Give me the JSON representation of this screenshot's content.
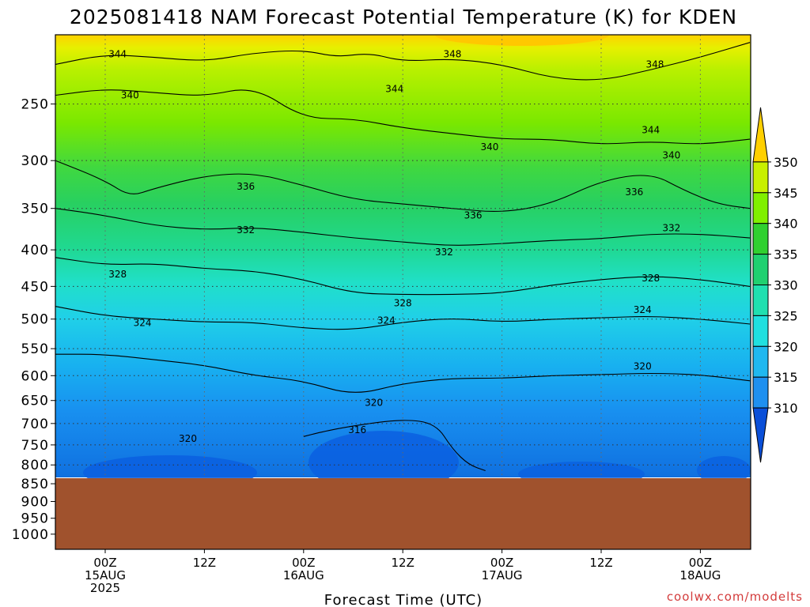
{
  "chart_data": {
    "type": "heatmap",
    "title": "2025081418 NAM Forecast Potential Temperature (K) for KDEN",
    "xlabel": "Forecast Time (UTC)",
    "ylabel": "",
    "credit": "coolwx.com/modelts",
    "y_axis": {
      "scale": "pressure (hPa), top 200 to bottom 1050",
      "ticks": [
        250,
        300,
        350,
        400,
        450,
        500,
        550,
        600,
        650,
        700,
        750,
        800,
        850,
        900,
        950,
        1000
      ]
    },
    "x_axis": {
      "range_hours": [
        -6,
        78
      ],
      "ticks": [
        {
          "hour": 0,
          "l1": "00Z",
          "l2": "15AUG",
          "l3": "2025"
        },
        {
          "hour": 12,
          "l1": "12Z",
          "l2": "",
          "l3": ""
        },
        {
          "hour": 24,
          "l1": "00Z",
          "l2": "16AUG",
          "l3": ""
        },
        {
          "hour": 36,
          "l1": "12Z",
          "l2": "",
          "l3": ""
        },
        {
          "hour": 48,
          "l1": "00Z",
          "l2": "17AUG",
          "l3": ""
        },
        {
          "hour": 60,
          "l1": "12Z",
          "l2": "",
          "l3": ""
        },
        {
          "hour": 72,
          "l1": "00Z",
          "l2": "18AUG",
          "l3": ""
        }
      ]
    },
    "grid": true,
    "terrain_pressure": 835,
    "colorbar": {
      "labels": [
        310,
        315,
        320,
        325,
        330,
        335,
        340,
        345,
        350
      ],
      "colors": [
        "#0a4fd8",
        "#1e90f0",
        "#20b8f0",
        "#20e0e0",
        "#20e0b0",
        "#20d070",
        "#30d030",
        "#80f000",
        "#c8f000",
        "#ffd000"
      ]
    },
    "terrain_color": "#a0522d",
    "contours": [
      {
        "value": 344,
        "p": [
          [
            -6,
            220
          ],
          [
            0,
            213
          ],
          [
            6,
            215
          ],
          [
            12,
            218
          ],
          [
            18,
            212
          ],
          [
            24,
            210
          ],
          [
            28,
            215
          ],
          [
            32,
            212
          ],
          [
            36,
            218
          ],
          [
            42,
            216
          ],
          [
            48,
            220
          ],
          [
            54,
            230
          ],
          [
            60,
            232
          ],
          [
            66,
            224
          ],
          [
            72,
            215
          ],
          [
            78,
            205
          ]
        ]
      },
      {
        "value": 340,
        "p": [
          [
            -6,
            243
          ],
          [
            0,
            238
          ],
          [
            6,
            241
          ],
          [
            12,
            244
          ],
          [
            18,
            236
          ],
          [
            24,
            262
          ],
          [
            30,
            262
          ],
          [
            36,
            270
          ],
          [
            42,
            275
          ],
          [
            48,
            280
          ],
          [
            54,
            280
          ],
          [
            60,
            285
          ],
          [
            66,
            282
          ],
          [
            72,
            285
          ],
          [
            78,
            280
          ]
        ]
      },
      {
        "value": 336,
        "p": [
          [
            -6,
            300
          ],
          [
            0,
            320
          ],
          [
            3,
            337
          ],
          [
            6,
            328
          ],
          [
            12,
            315
          ],
          [
            18,
            312
          ],
          [
            24,
            325
          ],
          [
            30,
            340
          ],
          [
            36,
            345
          ],
          [
            42,
            350
          ],
          [
            48,
            355
          ],
          [
            54,
            345
          ],
          [
            60,
            320
          ],
          [
            66,
            312
          ],
          [
            70,
            330
          ],
          [
            74,
            345
          ],
          [
            78,
            350
          ]
        ]
      },
      {
        "value": 332,
        "p": [
          [
            -6,
            350
          ],
          [
            0,
            358
          ],
          [
            6,
            370
          ],
          [
            12,
            375
          ],
          [
            18,
            372
          ],
          [
            24,
            378
          ],
          [
            30,
            385
          ],
          [
            36,
            390
          ],
          [
            42,
            395
          ],
          [
            48,
            392
          ],
          [
            54,
            388
          ],
          [
            60,
            386
          ],
          [
            66,
            380
          ],
          [
            72,
            380
          ],
          [
            78,
            385
          ]
        ]
      },
      {
        "value": 328,
        "p": [
          [
            -6,
            410
          ],
          [
            0,
            420
          ],
          [
            6,
            418
          ],
          [
            12,
            425
          ],
          [
            18,
            428
          ],
          [
            24,
            440
          ],
          [
            30,
            460
          ],
          [
            36,
            462
          ],
          [
            42,
            462
          ],
          [
            48,
            460
          ],
          [
            54,
            448
          ],
          [
            60,
            440
          ],
          [
            66,
            435
          ],
          [
            72,
            440
          ],
          [
            78,
            450
          ]
        ]
      },
      {
        "value": 324,
        "p": [
          [
            -6,
            480
          ],
          [
            0,
            495
          ],
          [
            6,
            500
          ],
          [
            12,
            505
          ],
          [
            18,
            505
          ],
          [
            24,
            515
          ],
          [
            30,
            518
          ],
          [
            36,
            505
          ],
          [
            42,
            498
          ],
          [
            48,
            505
          ],
          [
            54,
            500
          ],
          [
            60,
            498
          ],
          [
            66,
            495
          ],
          [
            72,
            500
          ],
          [
            78,
            508
          ]
        ]
      },
      {
        "value": 320,
        "p": [
          [
            -6,
            560
          ],
          [
            0,
            560
          ],
          [
            6,
            570
          ],
          [
            12,
            580
          ],
          [
            18,
            600
          ],
          [
            24,
            610
          ],
          [
            30,
            640
          ],
          [
            36,
            615
          ],
          [
            42,
            605
          ],
          [
            48,
            605
          ],
          [
            54,
            600
          ],
          [
            60,
            598
          ],
          [
            66,
            595
          ],
          [
            72,
            598
          ],
          [
            78,
            610
          ]
        ]
      },
      {
        "value": 316,
        "p": [
          [
            24,
            730
          ],
          [
            26,
            720
          ],
          [
            30,
            705
          ],
          [
            36,
            690
          ],
          [
            40,
            700
          ],
          [
            42,
            760
          ],
          [
            44,
            800
          ],
          [
            46,
            815
          ]
        ]
      }
    ],
    "contour_labels": [
      {
        "text": "344",
        "hour": 1.5,
        "p": 213
      },
      {
        "text": "348",
        "hour": 42,
        "p": 213
      },
      {
        "text": "348",
        "hour": 66.5,
        "p": 220
      },
      {
        "text": "344",
        "hour": 35,
        "p": 238
      },
      {
        "text": "340",
        "hour": 3,
        "p": 243
      },
      {
        "text": "344",
        "hour": 66,
        "p": 272
      },
      {
        "text": "340",
        "hour": 46.5,
        "p": 287
      },
      {
        "text": "340",
        "hour": 68.5,
        "p": 295
      },
      {
        "text": "336",
        "hour": 17,
        "p": 326
      },
      {
        "text": "336",
        "hour": 64,
        "p": 332
      },
      {
        "text": "336",
        "hour": 44.5,
        "p": 358
      },
      {
        "text": "332",
        "hour": 17,
        "p": 375
      },
      {
        "text": "332",
        "hour": 68.5,
        "p": 373
      },
      {
        "text": "332",
        "hour": 41,
        "p": 403
      },
      {
        "text": "328",
        "hour": 1.5,
        "p": 433
      },
      {
        "text": "328",
        "hour": 66,
        "p": 438
      },
      {
        "text": "328",
        "hour": 36,
        "p": 475
      },
      {
        "text": "324",
        "hour": 65,
        "p": 485
      },
      {
        "text": "324",
        "hour": 4.5,
        "p": 506
      },
      {
        "text": "324",
        "hour": 34,
        "p": 502
      },
      {
        "text": "320",
        "hour": 65,
        "p": 582
      },
      {
        "text": "320",
        "hour": 32.5,
        "p": 655
      },
      {
        "text": "320",
        "hour": 10,
        "p": 735
      },
      {
        "text": "316",
        "hour": 30.5,
        "p": 715
      }
    ]
  }
}
